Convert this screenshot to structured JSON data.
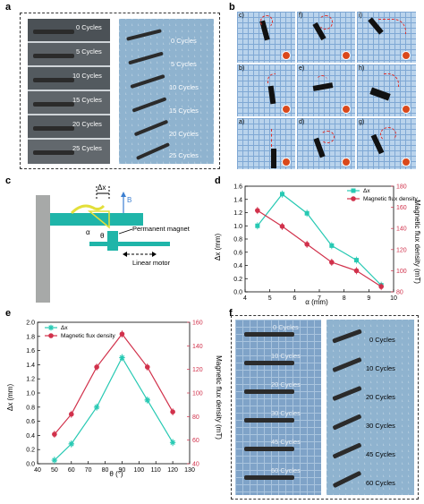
{
  "figure": {
    "panel_letters": [
      "a",
      "b",
      "c",
      "d",
      "e",
      "f"
    ]
  },
  "panel_a": {
    "left_cycles": [
      "0 Cycles",
      "5 Cycles",
      "10 Cycles",
      "15 Cycles",
      "20 Cycles",
      "25 Cycles"
    ],
    "right_cycles": [
      "0 Cycles",
      "5 Cycles",
      "10 Cycles",
      "15 Cycles",
      "20 Cycles",
      "25 Cycles"
    ]
  },
  "panel_b": {
    "cells": [
      "c)",
      "f)",
      "i)",
      "b)",
      "e)",
      "h)",
      "a)",
      "d)",
      "g)"
    ],
    "colors": {
      "grid": "#b9d3ec",
      "line": "#7fa8d4",
      "dashed_arc": "#e0302a",
      "coin": "#d9481b"
    }
  },
  "panel_c": {
    "labels": {
      "dx": "Δx",
      "b": "B",
      "alpha": "α",
      "theta": "θ",
      "magnet": "Permanent magnet",
      "motor": "Linear motor"
    },
    "colors": {
      "beam": "#1fb5a9",
      "base": "#a7a9a8",
      "arrow": "#3c7fd1",
      "triangle": "#e3df3a"
    }
  },
  "chart_data": [
    {
      "type": "line",
      "panel": "d",
      "xlabel": "α (mm)",
      "ylabel": "Δx (mm)",
      "y2label": "Magnetic flux density (mT)",
      "xlim": [
        4,
        10
      ],
      "ylim": [
        0.0,
        1.6
      ],
      "y2lim": [
        80,
        180
      ],
      "xticks": [
        "4",
        "5",
        "6",
        "7",
        "8",
        "9",
        "10"
      ],
      "yticks": [
        "0.0",
        "0.2",
        "0.4",
        "0.6",
        "0.8",
        "1.0",
        "1.2",
        "1.4",
        "1.6"
      ],
      "y2ticks": [
        "80",
        "100",
        "120",
        "140",
        "160",
        "180"
      ],
      "legend_placement": "top-right",
      "series": [
        {
          "name": "Δx",
          "axis": "left",
          "color": "#27c9b3",
          "marker": "square",
          "x": [
            4.5,
            5.5,
            6.5,
            7.5,
            8.5,
            9.5
          ],
          "y": [
            1.0,
            1.48,
            1.19,
            0.7,
            0.48,
            0.1
          ]
        },
        {
          "name": "Magnetic flux density",
          "axis": "right",
          "color": "#d1314b",
          "marker": "circle",
          "x": [
            4.5,
            5.5,
            6.5,
            7.5,
            8.5,
            9.5
          ],
          "y": [
            157,
            142,
            125,
            108,
            100,
            85
          ]
        }
      ]
    },
    {
      "type": "line",
      "panel": "e",
      "xlabel": "θ (°)",
      "ylabel": "Δx (mm)",
      "y2label": "Magnetic flux density (mT)",
      "xlim": [
        40,
        130
      ],
      "ylim": [
        0.0,
        2.0
      ],
      "y2lim": [
        40,
        160
      ],
      "xticks": [
        "40",
        "50",
        "60",
        "70",
        "80",
        "90",
        "100",
        "110",
        "120",
        "130"
      ],
      "yticks": [
        "0.0",
        "0.2",
        "0.4",
        "0.6",
        "0.8",
        "1.0",
        "1.2",
        "1.4",
        "1.6",
        "1.8",
        "2.0"
      ],
      "y2ticks": [
        "40",
        "60",
        "80",
        "100",
        "120",
        "140",
        "160"
      ],
      "legend_placement": "top-left",
      "series": [
        {
          "name": "Δx",
          "axis": "left",
          "color": "#27c9b3",
          "marker": "star",
          "x": [
            50,
            60,
            75,
            90,
            105,
            120
          ],
          "y": [
            0.05,
            0.28,
            0.8,
            1.5,
            0.9,
            0.3
          ]
        },
        {
          "name": "Magnetic flux density",
          "axis": "right",
          "color": "#d1314b",
          "marker": "circle",
          "x": [
            50,
            60,
            75,
            90,
            105,
            120
          ],
          "y": [
            65,
            82,
            122,
            150,
            122,
            84
          ]
        }
      ]
    }
  ],
  "panel_f": {
    "left_cycles": [
      "0 Cycles",
      "10 Cycles",
      "20 Cycles",
      "30 Cycles",
      "45 Cycles",
      "60 Cycles"
    ],
    "right_cycles": [
      "0 Cycles",
      "10 Cycles",
      "20 Cycles",
      "30 Cycles",
      "45 Cycles",
      "60 Cycles"
    ]
  }
}
